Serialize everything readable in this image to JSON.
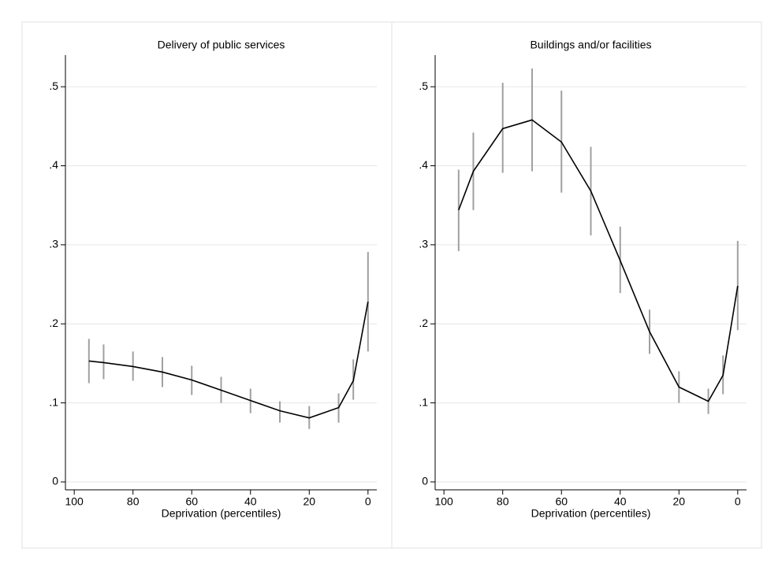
{
  "chart_data": [
    {
      "type": "line",
      "title": "Delivery of public services",
      "xlabel": "Deprivation (percentiles)",
      "x": [
        95,
        90,
        80,
        70,
        60,
        50,
        40,
        30,
        20,
        10,
        5,
        0
      ],
      "values": [
        0.153,
        0.151,
        0.146,
        0.139,
        0.129,
        0.116,
        0.103,
        0.09,
        0.081,
        0.094,
        0.128,
        0.228
      ],
      "ci_lower": [
        0.125,
        0.13,
        0.128,
        0.12,
        0.11,
        0.1,
        0.087,
        0.075,
        0.067,
        0.075,
        0.104,
        0.165
      ],
      "ci_upper": [
        0.181,
        0.174,
        0.165,
        0.158,
        0.147,
        0.133,
        0.118,
        0.102,
        0.096,
        0.112,
        0.155,
        0.291
      ],
      "color": "#000000",
      "ci_color": "#a0a0a0",
      "xlim": [
        103,
        -3
      ],
      "xticks": [
        100,
        80,
        60,
        40,
        20,
        0
      ],
      "ylim": [
        -0.01,
        0.54
      ],
      "yticks": [
        0,
        {
          "value": 0.1,
          "label": ".1"
        },
        {
          "value": 0.2,
          "label": ".2"
        },
        {
          "value": 0.3,
          "label": ".3"
        },
        {
          "value": 0.4,
          "label": ".4"
        },
        {
          "value": 0.5,
          "label": ".5"
        }
      ],
      "grid": true
    },
    {
      "type": "line",
      "title": "Buildings and/or facilities",
      "xlabel": "Deprivation (percentiles)",
      "x": [
        95,
        90,
        80,
        70,
        60,
        50,
        40,
        30,
        20,
        10,
        5,
        0
      ],
      "values": [
        0.344,
        0.393,
        0.447,
        0.458,
        0.43,
        0.368,
        0.28,
        0.19,
        0.12,
        0.102,
        0.135,
        0.248
      ],
      "ci_lower": [
        0.292,
        0.344,
        0.391,
        0.393,
        0.366,
        0.312,
        0.239,
        0.162,
        0.1,
        0.086,
        0.111,
        0.192
      ],
      "ci_upper": [
        0.395,
        0.442,
        0.505,
        0.523,
        0.495,
        0.424,
        0.323,
        0.218,
        0.14,
        0.118,
        0.16,
        0.305
      ],
      "color": "#000000",
      "ci_color": "#a0a0a0",
      "xlim": [
        103,
        -3
      ],
      "xticks": [
        100,
        80,
        60,
        40,
        20,
        0
      ],
      "ylim": [
        -0.01,
        0.54
      ],
      "yticks": [
        0,
        {
          "value": 0.1,
          "label": ".1"
        },
        {
          "value": 0.2,
          "label": ".2"
        },
        {
          "value": 0.3,
          "label": ".3"
        },
        {
          "value": 0.4,
          "label": ".4"
        },
        {
          "value": 0.5,
          "label": ".5"
        }
      ],
      "grid": true
    }
  ]
}
